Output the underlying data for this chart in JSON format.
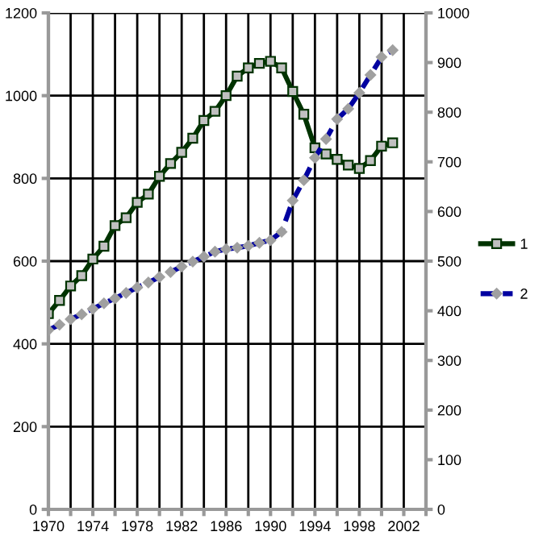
{
  "chart_data": {
    "type": "line",
    "x": [
      1970,
      1971,
      1972,
      1973,
      1974,
      1975,
      1976,
      1977,
      1978,
      1979,
      1980,
      1981,
      1982,
      1983,
      1984,
      1985,
      1986,
      1987,
      1988,
      1989,
      1990,
      1991,
      1992,
      1993,
      1994,
      1995,
      1996,
      1997,
      1998,
      1999,
      2000,
      2001
    ],
    "series": [
      {
        "name": "1",
        "color": "#003300",
        "marker": "square",
        "line_style": "solid",
        "values": [
          473,
          505,
          540,
          565,
          605,
          636,
          686,
          705,
          742,
          762,
          805,
          836,
          863,
          897,
          940,
          962,
          1000,
          1047,
          1067,
          1078,
          1083,
          1067,
          1010,
          955,
          874,
          859,
          846,
          832,
          824,
          843,
          878,
          886
        ]
      },
      {
        "name": "2",
        "color": "#0000a0",
        "marker": "diamond",
        "line_style": "dashed",
        "axis": "y2",
        "values": [
          361,
          372,
          383,
          393,
          404,
          415,
          425,
          436,
          447,
          457,
          468,
          478,
          489,
          499,
          509,
          519,
          524,
          527,
          531,
          537,
          542,
          559,
          622,
          663,
          708,
          746,
          786,
          807,
          839,
          875,
          911,
          925
        ]
      }
    ],
    "xlim": [
      1970,
      2004
    ],
    "xticks": [
      1970,
      {
        "value": 1972,
        "label": null
      },
      1974,
      {
        "value": 1976,
        "label": null
      },
      1978,
      {
        "value": 1980,
        "label": null
      },
      1982,
      {
        "value": 1984,
        "label": null
      },
      1986,
      {
        "value": 1988,
        "label": null
      },
      1990,
      {
        "value": 1992,
        "label": null
      },
      1994,
      {
        "value": 1996,
        "label": null
      },
      1998,
      {
        "value": 2000,
        "label": null
      },
      2002,
      {
        "value": 2004,
        "label": null
      }
    ],
    "ylim": [
      0,
      1200
    ],
    "yticks": [
      0,
      200,
      400,
      600,
      800,
      1000,
      1200
    ],
    "y2lim": [
      0,
      1000
    ],
    "y2ticks": [
      0,
      100,
      200,
      300,
      400,
      500,
      600,
      700,
      800,
      900,
      1000
    ],
    "grid": true,
    "legend": "right"
  }
}
